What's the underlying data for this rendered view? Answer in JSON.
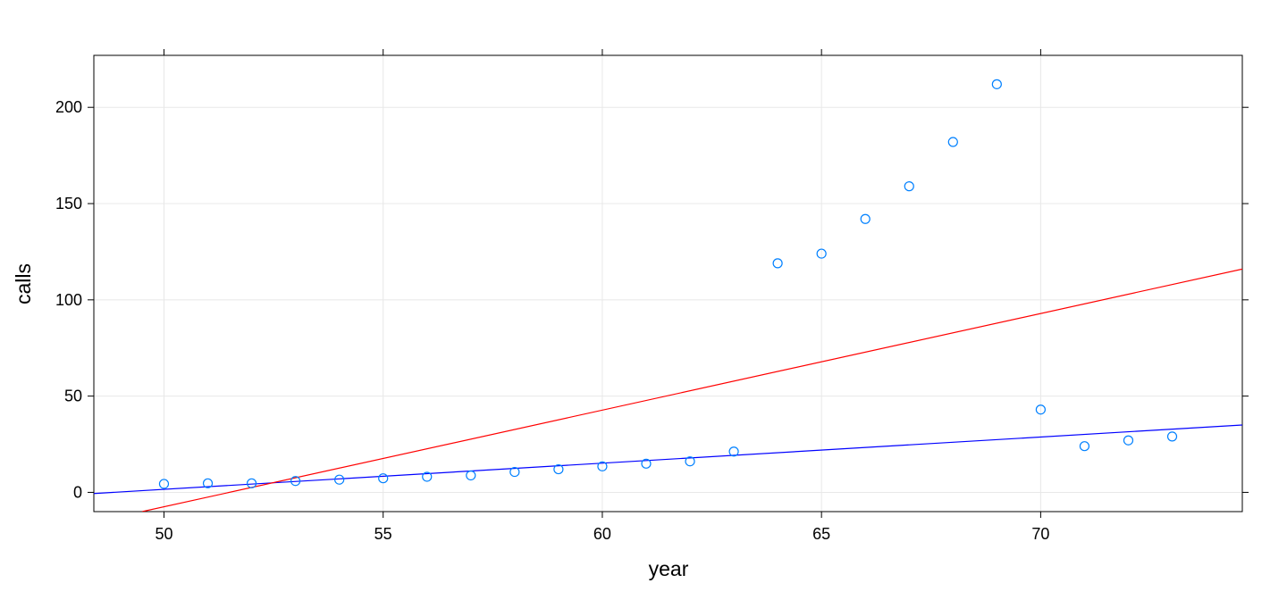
{
  "chart_data": {
    "type": "scatter",
    "title": "",
    "xlabel": "year",
    "ylabel": "calls",
    "xlim": [
      48.4,
      74.6
    ],
    "ylim": [
      -10,
      227
    ],
    "grid": true,
    "x_ticks": [
      50,
      55,
      60,
      65,
      70
    ],
    "y_ticks": [
      0,
      50,
      100,
      150,
      200
    ],
    "points": {
      "x": [
        50,
        51,
        52,
        53,
        54,
        55,
        56,
        57,
        58,
        59,
        60,
        61,
        62,
        63,
        64,
        65,
        66,
        67,
        68,
        69,
        70,
        71,
        72,
        73
      ],
      "y": [
        4.4,
        4.7,
        4.7,
        5.9,
        6.6,
        7.3,
        8.1,
        8.8,
        10.6,
        12.0,
        13.5,
        14.9,
        16.1,
        21.2,
        119.0,
        124.0,
        142.0,
        159.0,
        182.0,
        212.0,
        43.0,
        24.0,
        27.0,
        29.0
      ],
      "color": "#0080ff"
    },
    "fit_lines": [
      {
        "x": [
          48.4,
          74.6
        ],
        "y": [
          -0.6,
          35.0
        ],
        "color": "#0000ff"
      },
      {
        "x": [
          49.5,
          74.6
        ],
        "y": [
          -10.0,
          116.0
        ],
        "color": "#ff0000"
      }
    ]
  }
}
